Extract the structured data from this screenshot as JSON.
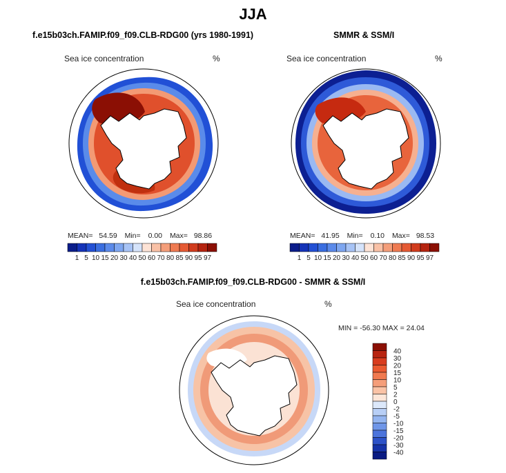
{
  "title": "JJA",
  "panels": [
    {
      "title": "f.e15b03ch.FAMIP.f09_f09.CLB-RDG00 (yrs 1980-1991)",
      "variable": "Sea ice concentration",
      "units": "%",
      "mean_label": "MEAN=",
      "mean": "54.59",
      "min_label": "Min=",
      "min": "0.00",
      "max_label": "Max=",
      "max": "98.86"
    },
    {
      "title": "SMMR & SSM/I",
      "variable": "Sea ice concentration",
      "units": "%",
      "mean_label": "MEAN=",
      "mean": "41.95",
      "min_label": "Min=",
      "min": "0.10",
      "max_label": "Max=",
      "max": "98.53"
    },
    {
      "title": "f.e15b03ch.FAMIP.f09_f09.CLB-RDG00 - SMMR & SSM/I",
      "variable": "Sea ice concentration",
      "units": "%",
      "minmax_text": "MIN = -56.30 MAX =  24.04"
    }
  ],
  "colorbar_concentration": {
    "levels": [
      "1",
      "5",
      "10",
      "15",
      "20",
      "30",
      "40",
      "50",
      "60",
      "70",
      "80",
      "85",
      "90",
      "95",
      "97"
    ],
    "colors": [
      "#0b1d8a",
      "#1533b8",
      "#2350d4",
      "#3a6ee0",
      "#5b8aea",
      "#7ea6f0",
      "#a7c3f5",
      "#d5e3fa",
      "#fde3d6",
      "#f9c1a6",
      "#f49e7a",
      "#ef7b52",
      "#e55a34",
      "#d13c1e",
      "#b52410",
      "#8b0f04"
    ]
  },
  "colorbar_difference": {
    "levels": [
      "40",
      "30",
      "20",
      "15",
      "10",
      "5",
      "2",
      "0",
      "-2",
      "-5",
      "-10",
      "-15",
      "-20",
      "-30",
      "-40"
    ],
    "colors": [
      "#8b0f04",
      "#b82410",
      "#d83c1e",
      "#ea5a30",
      "#f07a50",
      "#f59e7a",
      "#fac3a6",
      "#fde6d8",
      "#dce8fa",
      "#b8cff6",
      "#94b5f0",
      "#6f96e8",
      "#4c74dc",
      "#2d52c8",
      "#1633a8",
      "#0a1b82"
    ]
  }
}
